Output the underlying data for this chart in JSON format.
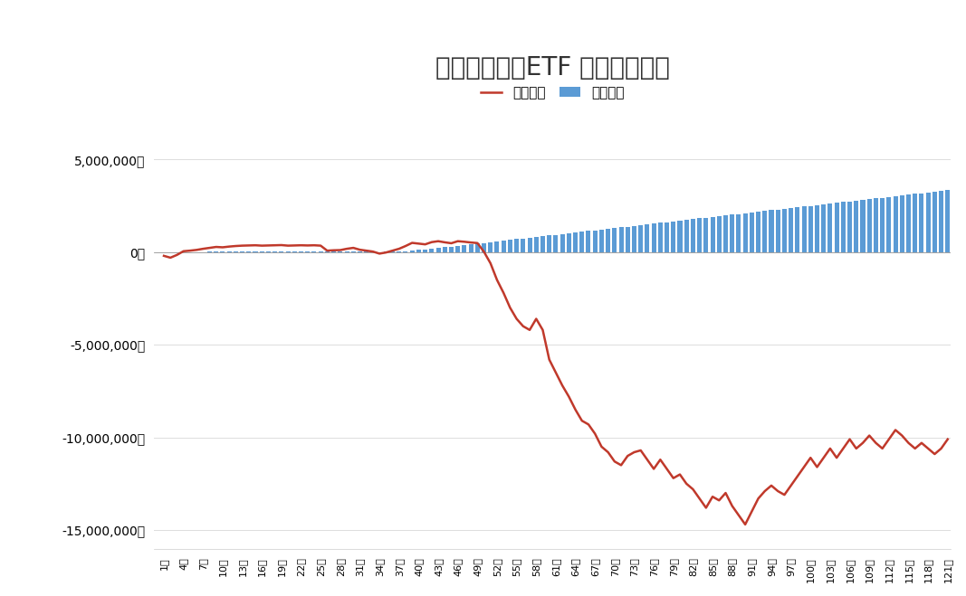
{
  "title": "トライオートETF 週別運用実績",
  "legend_realized": "実現損益",
  "legend_eval": "評価損益",
  "bar_color": "#5B9BD5",
  "line_color": "#C0392B",
  "background_color": "#FFFFFF",
  "ylim": [
    -16000000,
    6500000
  ],
  "yticks": [
    5000000,
    0,
    -5000000,
    -10000000,
    -15000000
  ],
  "weeks": 121,
  "realized_gains": [
    0,
    0,
    0,
    5000,
    8000,
    10000,
    13000,
    15000,
    20000,
    22000,
    25000,
    28000,
    31000,
    33000,
    36000,
    38000,
    40000,
    43000,
    46000,
    48000,
    50000,
    52000,
    54000,
    56000,
    58000,
    20000,
    22000,
    24000,
    26000,
    28000,
    30000,
    32000,
    10000,
    13000,
    15000,
    17000,
    20000,
    40000,
    80000,
    120000,
    150000,
    180000,
    220000,
    260000,
    300000,
    340000,
    380000,
    420000,
    460000,
    500000,
    540000,
    580000,
    620000,
    660000,
    700000,
    740000,
    780000,
    820000,
    860000,
    900000,
    940000,
    980000,
    1020000,
    1060000,
    1100000,
    1140000,
    1180000,
    1220000,
    1260000,
    1300000,
    1340000,
    1380000,
    1420000,
    1460000,
    1500000,
    1540000,
    1580000,
    1620000,
    1660000,
    1700000,
    1740000,
    1780000,
    1820000,
    1860000,
    1900000,
    1940000,
    1980000,
    2020000,
    2060000,
    2100000,
    2140000,
    2180000,
    2220000,
    2260000,
    2300000,
    2340000,
    2380000,
    2420000,
    2460000,
    2500000,
    2540000,
    2580000,
    2620000,
    2660000,
    2700000,
    2740000,
    2780000,
    2820000,
    2860000,
    2900000,
    2940000,
    2980000,
    3020000,
    3060000,
    3100000,
    3140000,
    3180000,
    3220000,
    3260000,
    3300000,
    3340000
  ],
  "eval_gains": [
    -200000,
    -300000,
    -150000,
    50000,
    80000,
    120000,
    180000,
    230000,
    280000,
    260000,
    300000,
    330000,
    350000,
    360000,
    370000,
    350000,
    360000,
    370000,
    380000,
    350000,
    360000,
    370000,
    360000,
    370000,
    350000,
    80000,
    100000,
    110000,
    180000,
    230000,
    130000,
    80000,
    30000,
    -80000,
    -20000,
    80000,
    180000,
    330000,
    500000,
    460000,
    420000,
    540000,
    590000,
    530000,
    480000,
    590000,
    560000,
    520000,
    490000,
    20000,
    -600000,
    -1500000,
    -2200000,
    -3000000,
    -3600000,
    -4000000,
    -4200000,
    -3600000,
    -4200000,
    -5800000,
    -6500000,
    -7200000,
    -7800000,
    -8500000,
    -9100000,
    -9300000,
    -9800000,
    -10500000,
    -10800000,
    -11300000,
    -11500000,
    -11000000,
    -10800000,
    -10700000,
    -11200000,
    -11700000,
    -11200000,
    -11700000,
    -12200000,
    -12000000,
    -12500000,
    -12800000,
    -13300000,
    -13800000,
    -13200000,
    -13400000,
    -13000000,
    -13700000,
    -14200000,
    -14700000,
    -14000000,
    -13300000,
    -12900000,
    -12600000,
    -12900000,
    -13100000,
    -12600000,
    -12100000,
    -11600000,
    -11100000,
    -11600000,
    -11100000,
    -10600000,
    -11100000,
    -10600000,
    -10100000,
    -10600000,
    -10300000,
    -9900000,
    -10300000,
    -10600000,
    -10100000,
    -9600000,
    -9900000,
    -10300000,
    -10600000,
    -10300000,
    -10600000,
    -10900000,
    -10600000,
    -10100000
  ]
}
